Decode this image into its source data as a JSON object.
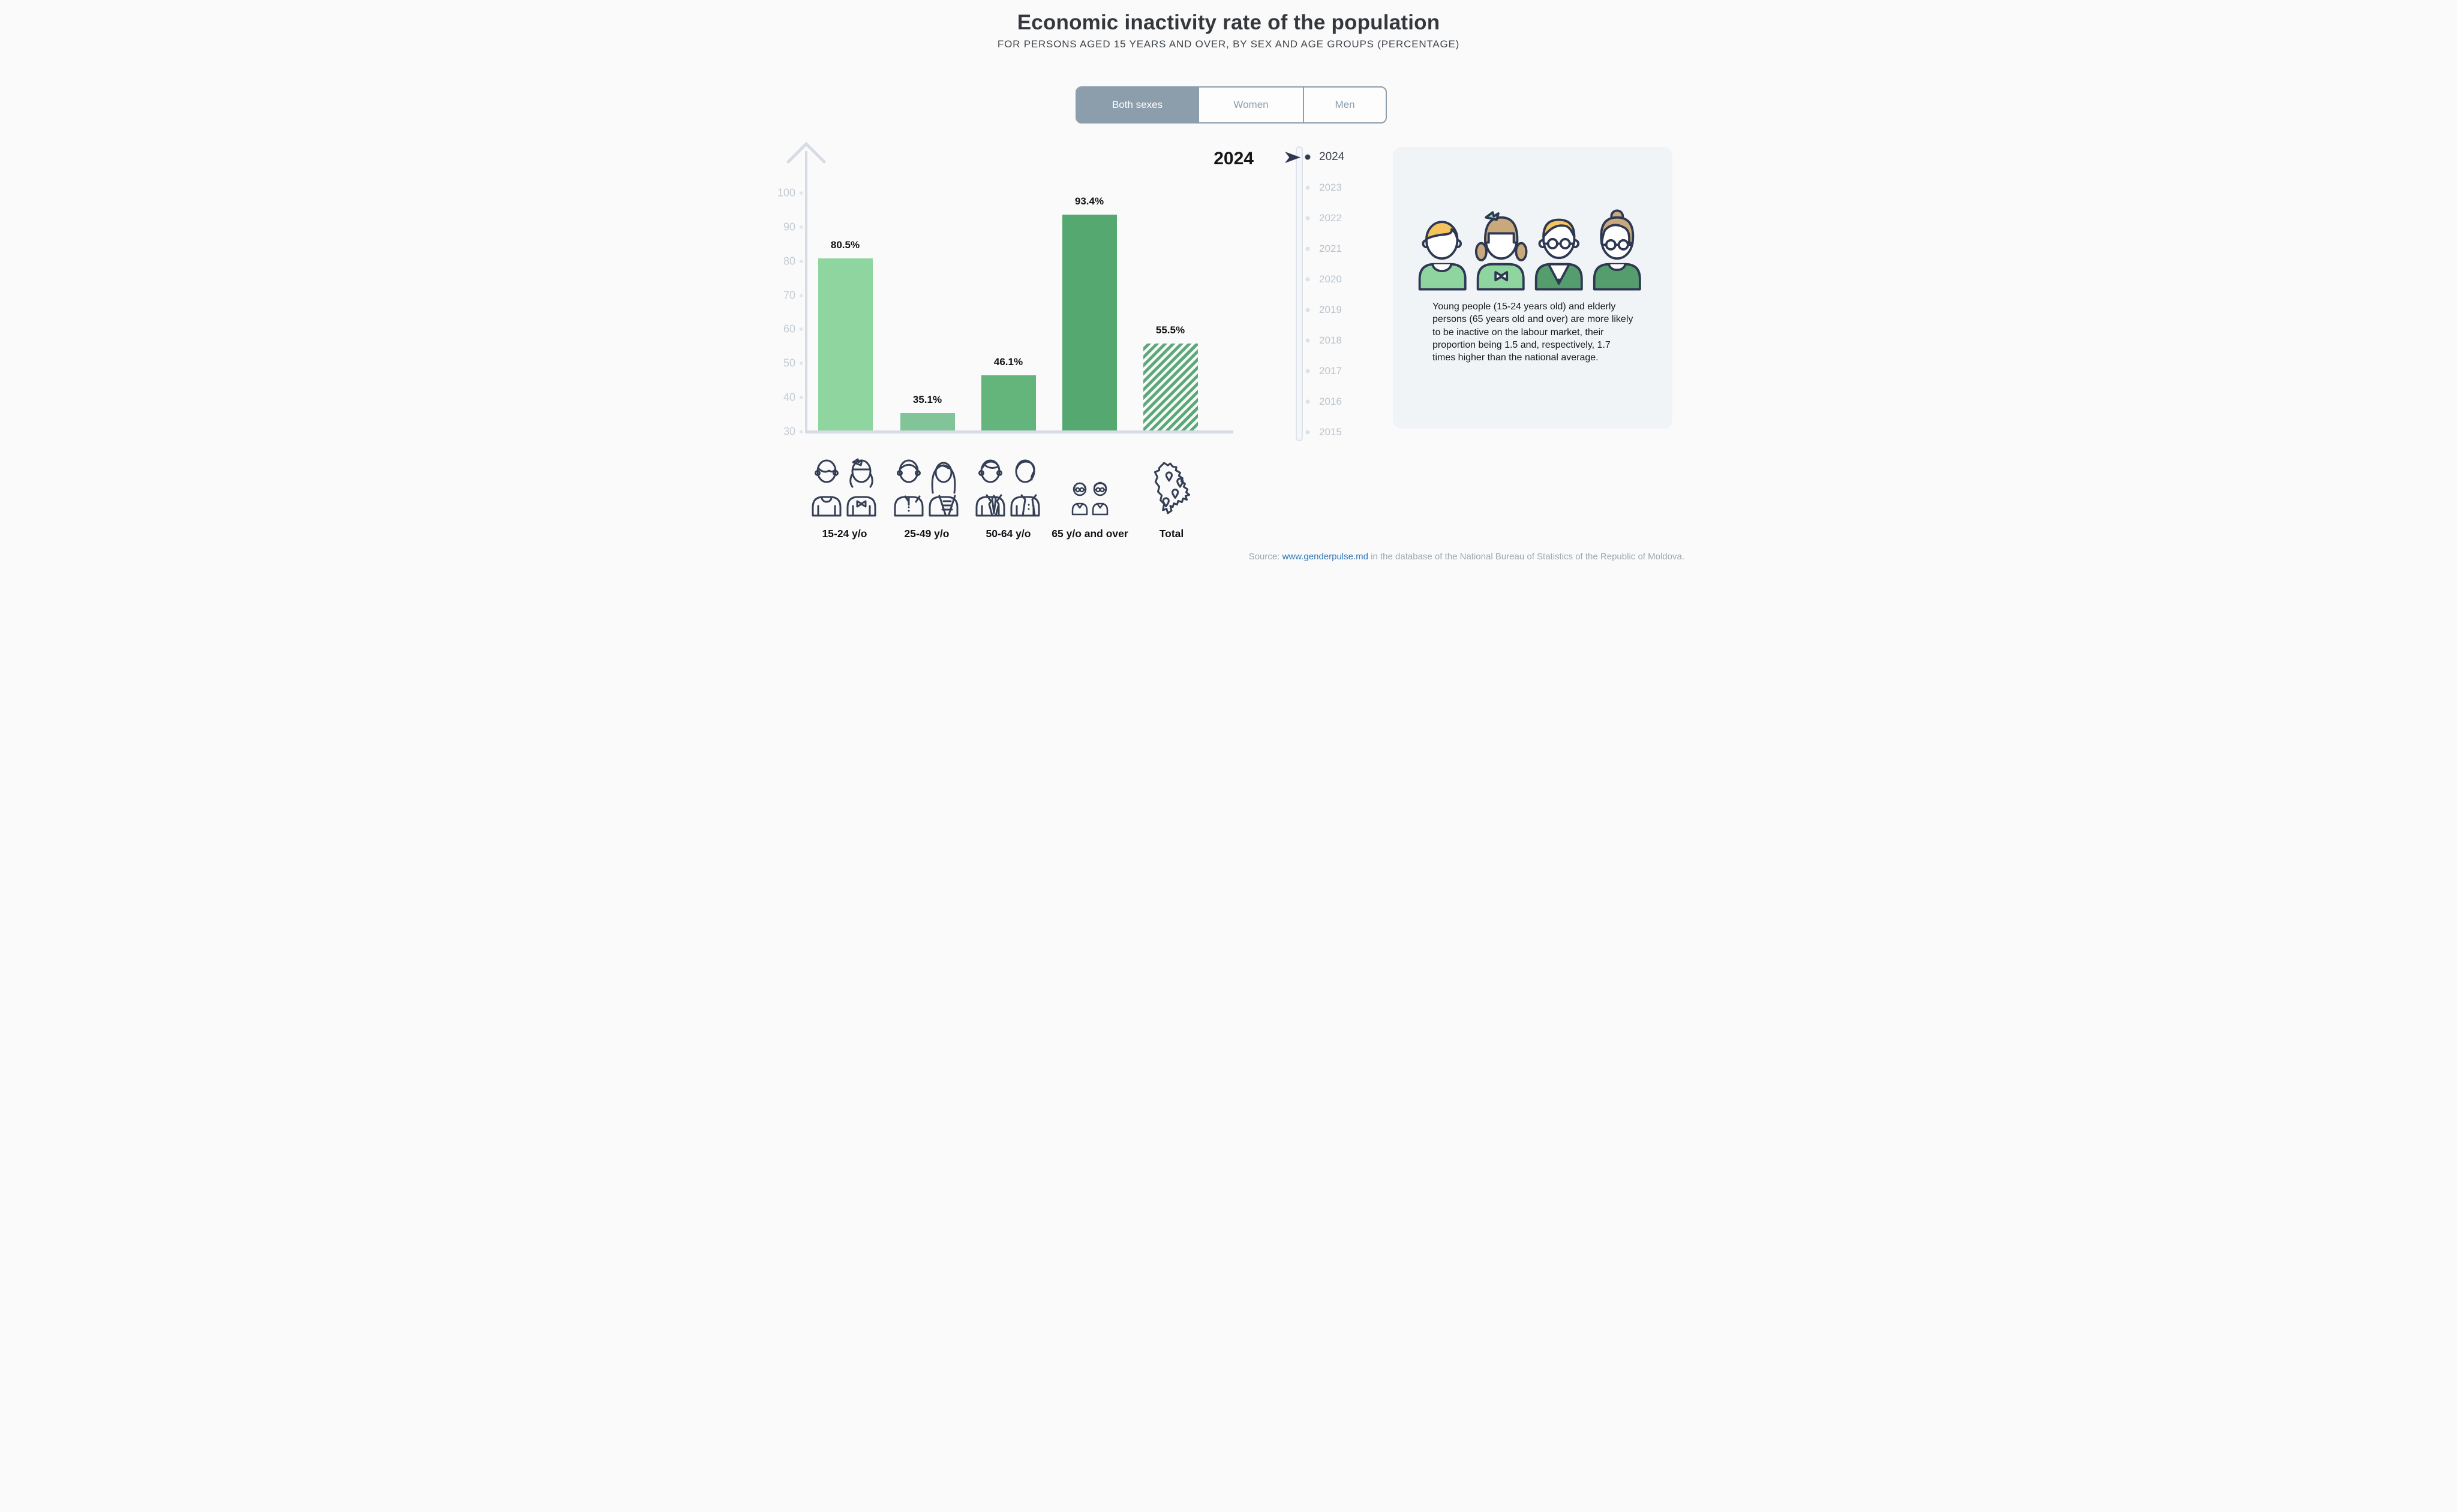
{
  "header": {
    "title": "Economic inactivity rate of the population",
    "subtitle": "FOR PERSONS AGED 15 YEARS AND OVER, BY SEX AND AGE GROUPS (PERCENTAGE)"
  },
  "sex_tabs": {
    "options": [
      {
        "label": "Both sexes",
        "selected": true
      },
      {
        "label": "Women",
        "selected": false
      },
      {
        "label": "Men",
        "selected": false
      }
    ]
  },
  "chart_data": {
    "type": "bar",
    "title": "Economic inactivity rate of the population",
    "year": "2024",
    "categories": [
      "15-24 y/o",
      "25-49 y/o",
      "50-64 y/o",
      "65 y/o and over",
      "Total"
    ],
    "values": [
      80.5,
      35.1,
      46.1,
      93.4,
      55.5
    ],
    "value_labels": [
      "80.5%",
      "35.1%",
      "46.1%",
      "93.4%",
      "55.5%"
    ],
    "unit": "percent",
    "ylim": [
      30,
      100
    ],
    "yticks": [
      100,
      90,
      80,
      70,
      60,
      50,
      40,
      30
    ],
    "grid": false,
    "legend": "none",
    "bar_colors": [
      "#8fd5a0",
      "#80c497",
      "#64b57c",
      "#56a871",
      "#5ba878"
    ],
    "total_bar_style": "diagonal-hatch"
  },
  "timeline": {
    "selected_year": "2024",
    "years": [
      "2024",
      "2023",
      "2022",
      "2021",
      "2020",
      "2019",
      "2018",
      "2017",
      "2016",
      "2015"
    ]
  },
  "info_card": {
    "text": "Young people (15-24 years old) and elderly persons (65 years old and over) are more likely to be inactive on the labour market, their proportion being 1.5 and, respectively, 1.7 times higher than the national average.",
    "illustration": "young-boy, young-girl, elderly-man, elderly-woman"
  },
  "category_icons": [
    "young-couple-icon",
    "adult-couple-icon",
    "mature-couple-icon",
    "elderly-couple-icon",
    "moldova-map-icon"
  ],
  "source": {
    "prefix": "Source: ",
    "link_text": "www.genderpulse.md",
    "suffix": " in the database of the National Bureau of Statistics of the Republic of Moldova."
  },
  "colors": {
    "background": "#fafafa",
    "axis": "#d5dce3",
    "tab_accent": "#8c9dab",
    "selected_year_text": "#3b424b",
    "inactive_year_text": "#b9c3cd",
    "card_background": "#f1f4f7",
    "link": "#3077b8",
    "icon_outline": "#343e55"
  }
}
